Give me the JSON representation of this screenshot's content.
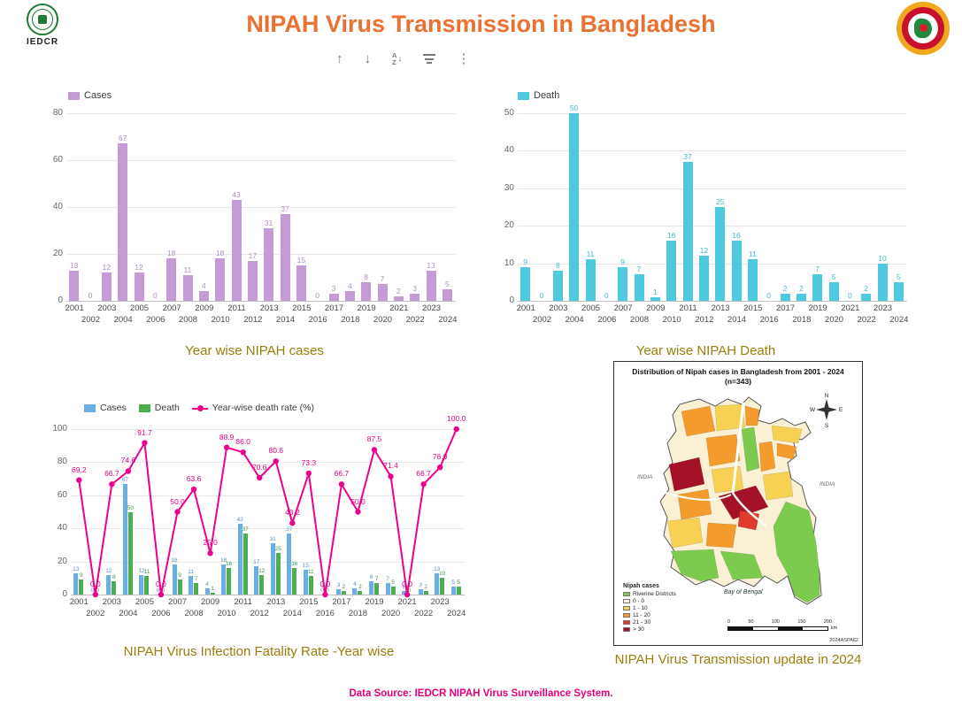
{
  "header": {
    "title": "NIPAH Virus Transmission in Bangladesh",
    "iedcr_label": "IEDCR"
  },
  "toolbar": {
    "up": "↑",
    "down": "↓",
    "sort_a": "A",
    "sort_z": "Z",
    "sort_arrow": "↓",
    "more": "⋮"
  },
  "footer": {
    "text": "Data Source: IEDCR NIPAH Virus Surveillance System."
  },
  "chart_data": [
    {
      "id": "year-wise-cases",
      "type": "bar",
      "title": "Year wise NIPAH cases",
      "legend_label": "Cases",
      "legend_position": "top-left",
      "grid": true,
      "bar_color": "#C49BD4",
      "label_color": "#B48CC6",
      "categories": [
        "2001",
        "2002",
        "2003",
        "2004",
        "2005",
        "2006",
        "2007",
        "2008",
        "2009",
        "2010",
        "2011",
        "2012",
        "2013",
        "2014",
        "2015",
        "2016",
        "2017",
        "2018",
        "2019",
        "2020",
        "2021",
        "2022",
        "2023",
        "2024"
      ],
      "values": [
        13,
        0,
        12,
        67,
        12,
        0,
        18,
        11,
        4,
        18,
        43,
        17,
        31,
        37,
        15,
        0,
        3,
        4,
        8,
        7,
        2,
        3,
        13,
        5
      ],
      "xlabel": "",
      "ylabel": "",
      "ylim": [
        0,
        80
      ],
      "ytick_step": 20
    },
    {
      "id": "year-wise-deaths",
      "type": "bar",
      "title": "Year wise NIPAH Death",
      "legend_label": "Death",
      "legend_position": "top-left",
      "grid": true,
      "bar_color": "#4EC9DE",
      "label_color": "#43BACD",
      "categories": [
        "2001",
        "2002",
        "2003",
        "2004",
        "2005",
        "2006",
        "2007",
        "2008",
        "2009",
        "2010",
        "2011",
        "2012",
        "2013",
        "2014",
        "2015",
        "2016",
        "2017",
        "2018",
        "2019",
        "2020",
        "2021",
        "2022",
        "2023",
        "2024"
      ],
      "values": [
        9,
        0,
        8,
        50,
        11,
        0,
        9,
        7,
        1,
        16,
        37,
        12,
        25,
        16,
        11,
        0,
        2,
        2,
        7,
        5,
        0,
        2,
        10,
        5
      ],
      "xlabel": "",
      "ylabel": "",
      "ylim": [
        0,
        50
      ],
      "ytick_step": 10
    },
    {
      "id": "fatality-rate",
      "type": "bar+line",
      "title": "NIPAH Virus Infection Fatality Rate -Year wise",
      "legend_position": "top-left",
      "grid": true,
      "categories": [
        "2001",
        "2002",
        "2003",
        "2004",
        "2005",
        "2006",
        "2007",
        "2008",
        "2009",
        "2010",
        "2011",
        "2012",
        "2013",
        "2014",
        "2015",
        "2016",
        "2017",
        "2018",
        "2019",
        "2020",
        "2021",
        "2022",
        "2023",
        "2024"
      ],
      "series": [
        {
          "name": "Cases",
          "type": "bar",
          "color": "#6AAFE6",
          "label_color": "#5694C9",
          "values": [
            13,
            0,
            12,
            67,
            12,
            0,
            18,
            11,
            4,
            18,
            43,
            17,
            31,
            37,
            15,
            0,
            3,
            4,
            8,
            7,
            2,
            3,
            13,
            5
          ]
        },
        {
          "name": "Death",
          "type": "bar",
          "color": "#4BAE4F",
          "label_color": "#3E9A43",
          "values": [
            9,
            0,
            8,
            50,
            11,
            0,
            9,
            7,
            1,
            16,
            37,
            12,
            25,
            16,
            11,
            0,
            2,
            2,
            7,
            5,
            0,
            2,
            10,
            5
          ]
        },
        {
          "name": "Year-wise death rate (%)",
          "type": "line",
          "color": "#EC008C",
          "values": [
            69.2,
            0.0,
            66.7,
            74.6,
            91.7,
            0.0,
            50.0,
            63.6,
            25.0,
            88.9,
            86.0,
            70.6,
            80.6,
            43.2,
            73.3,
            0.0,
            66.7,
            50.0,
            87.5,
            71.4,
            0.0,
            66.7,
            76.9,
            100.0
          ]
        }
      ],
      "xlabel": "",
      "ylabel": "",
      "ylim": [
        0,
        100
      ],
      "ytick_step": 20
    },
    {
      "id": "district-map",
      "type": "map",
      "title_line1": "Distribution of Nipah cases in Bangladesh from 2001 - 2024",
      "title_line2": "(n=343)",
      "caption": "NIPAH Virus Transmission update in 2024",
      "sea_label": "Bay of Bengal",
      "neighbor_label": "INDIA",
      "compass": [
        "N",
        "E",
        "S",
        "W"
      ],
      "legend": {
        "title": "Nipah cases",
        "items": [
          {
            "label": "Riverine Districts",
            "color": "#7CCB4E"
          },
          {
            "label": "0 - 0",
            "color": "#FDF6DE"
          },
          {
            "label": "1 - 10",
            "color": "#F7D154"
          },
          {
            "label": "11 - 20",
            "color": "#F39C2D"
          },
          {
            "label": "21 - 30",
            "color": "#E03A2F"
          },
          {
            "label": "> 30",
            "color": "#A31227"
          }
        ]
      },
      "scale": {
        "ticks": [
          "0",
          "50",
          "100",
          "150",
          "200"
        ],
        "unit": "km"
      },
      "code": "2024ASPA62"
    }
  ]
}
